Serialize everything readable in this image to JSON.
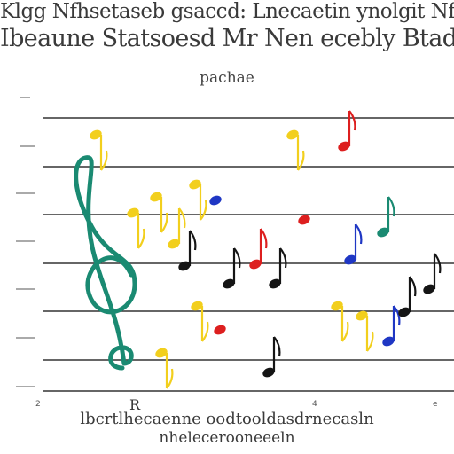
{
  "title_lines": [
    "Klgg Nfhsetaseb gsaccd: Lnecaetin ynolgit Nf",
    "Ibeaune Statsoesd Mr Nen ecebly Btadiaces"
  ],
  "subtitle": "pachae",
  "footer_lines": [
    "lbcrtlhecaenne oodtooldasdrnecasln",
    "nhelecerooneeeln"
  ],
  "bottom_marks": [
    "2",
    "R",
    "4",
    "e"
  ],
  "palette": {
    "staff": "#333333",
    "treble_clef": "#1a8a72",
    "yellow": "#f2cf1d",
    "red": "#dd1f1f",
    "blue": "#1f37c4",
    "black": "#151515",
    "teal": "#1a8a72"
  },
  "note_colors": [
    "yellow",
    "yellow",
    "yellow",
    "red",
    "yellow",
    "blue",
    "black",
    "yellow",
    "red",
    "yellow",
    "black",
    "yellow",
    "red",
    "blue",
    "teal",
    "yellow",
    "black",
    "yellow",
    "blue",
    "black",
    "black",
    "red",
    "yellow",
    "black"
  ]
}
